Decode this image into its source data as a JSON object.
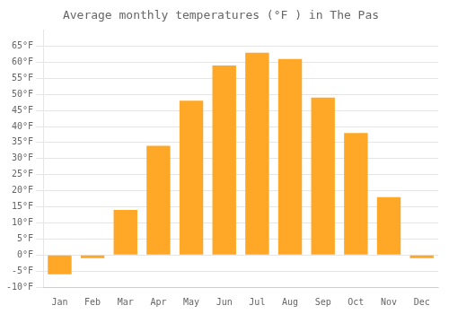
{
  "chart_data": {
    "type": "bar",
    "title": "Average monthly temperatures (°F ) in The Pas",
    "categories": [
      "Jan",
      "Feb",
      "Mar",
      "Apr",
      "May",
      "Jun",
      "Jul",
      "Aug",
      "Sep",
      "Oct",
      "Nov",
      "Dec"
    ],
    "values": [
      -6,
      -1,
      14,
      34,
      48,
      59,
      63,
      61,
      49,
      38,
      18,
      -1
    ],
    "color": "#FFA726",
    "ylim": [
      -10,
      70
    ],
    "yticks": [
      {
        "value": -10,
        "label": "-10°F"
      },
      {
        "value": -5,
        "label": "-5°F"
      },
      {
        "value": 0,
        "label": "0°F"
      },
      {
        "value": 5,
        "label": "5°F"
      },
      {
        "value": 10,
        "label": "10°F"
      },
      {
        "value": 15,
        "label": "15°F"
      },
      {
        "value": 20,
        "label": "20°F"
      },
      {
        "value": 25,
        "label": "25°F"
      },
      {
        "value": 30,
        "label": "30°F"
      },
      {
        "value": 35,
        "label": "35°F"
      },
      {
        "value": 40,
        "label": "40°F"
      },
      {
        "value": 45,
        "label": "45°F"
      },
      {
        "value": 50,
        "label": "50°F"
      },
      {
        "value": 55,
        "label": "55°F"
      },
      {
        "value": 60,
        "label": "60°F"
      },
      {
        "value": 65,
        "label": "65°F"
      }
    ],
    "grid": "y"
  }
}
